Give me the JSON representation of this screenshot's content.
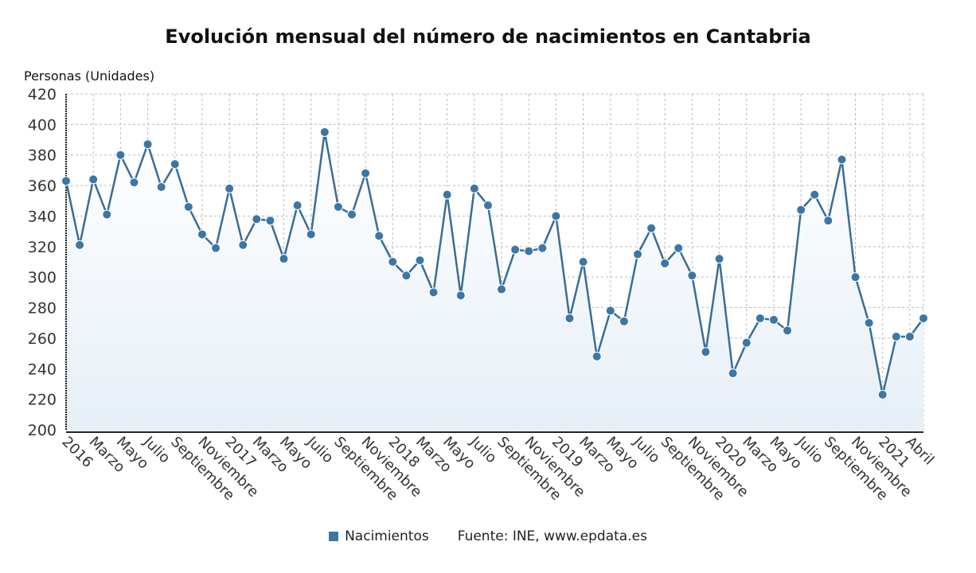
{
  "chart_data": {
    "type": "line",
    "title": "Evolución mensual del número de nacimientos en Cantabria",
    "ylabel": "Personas (Unidades)",
    "xlabel": "",
    "ylim": [
      200,
      420
    ],
    "yticks": [
      200,
      220,
      240,
      260,
      280,
      300,
      320,
      340,
      360,
      380,
      400,
      420
    ],
    "grid": true,
    "legend_placement": "bottom",
    "colors": {
      "line": "#3a6d94",
      "marker": "#3b76a6",
      "fill": "#e6eff7"
    },
    "x_tick_labels": [
      "2016",
      "Marzo",
      "Mayo",
      "Julio",
      "Septiembre",
      "Noviembre",
      "2017",
      "Marzo",
      "Mayo",
      "Julio",
      "Septiembre",
      "Noviembre",
      "2018",
      "Marzo",
      "Mayo",
      "Julio",
      "Septiembre",
      "Noviembre",
      "2019",
      "Marzo",
      "Mayo",
      "Julio",
      "Septiembre",
      "Noviembre",
      "2020",
      "Marzo",
      "Mayo",
      "Julio",
      "Septiembre",
      "Noviembre",
      "2021",
      "Abril"
    ],
    "x_range": [
      "2016-01",
      "2021-04"
    ],
    "series": [
      {
        "name": "Nacimientos",
        "values": [
          363,
          321,
          364,
          341,
          380,
          362,
          387,
          359,
          374,
          346,
          328,
          319,
          358,
          321,
          338,
          337,
          312,
          347,
          328,
          395,
          346,
          341,
          368,
          327,
          310,
          301,
          311,
          290,
          354,
          288,
          358,
          347,
          292,
          318,
          317,
          319,
          340,
          273,
          310,
          248,
          278,
          271,
          315,
          332,
          309,
          319,
          301,
          251,
          312,
          237,
          257,
          273,
          272,
          265,
          344,
          354,
          337,
          377,
          300,
          270,
          223,
          261,
          261,
          273
        ]
      }
    ]
  },
  "legend": {
    "series_label": "Nacimientos",
    "source": "Fuente: INE, www.epdata.es"
  }
}
